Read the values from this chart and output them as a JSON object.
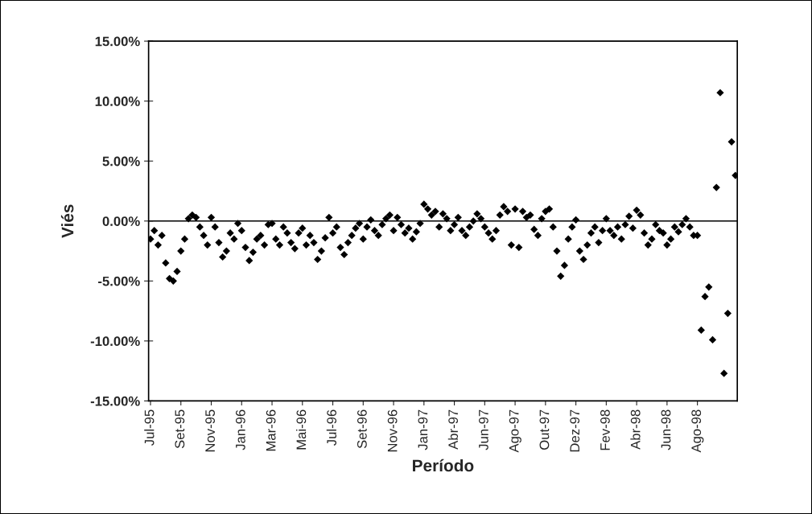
{
  "chart_data": {
    "type": "scatter",
    "xlabel": "Período",
    "ylabel": "Viés",
    "categories": [
      "Jul-95",
      null,
      null,
      null,
      null,
      null,
      null,
      null,
      "Set-95",
      null,
      null,
      null,
      null,
      null,
      null,
      null,
      "Nov-95",
      null,
      null,
      null,
      null,
      null,
      null,
      null,
      "Jan-96",
      null,
      null,
      null,
      null,
      null,
      null,
      null,
      "Mar-96",
      null,
      null,
      null,
      null,
      null,
      null,
      null,
      "Mai-96",
      null,
      null,
      null,
      null,
      null,
      null,
      null,
      "Jul-96",
      null,
      null,
      null,
      null,
      null,
      null,
      null,
      "Set-96",
      null,
      null,
      null,
      null,
      null,
      null,
      null,
      "Nov-96",
      null,
      null,
      null,
      null,
      null,
      null,
      null,
      "Jan-97",
      null,
      null,
      null,
      null,
      null,
      null,
      null,
      "Abr-97",
      null,
      null,
      null,
      null,
      null,
      null,
      null,
      "Jun-97",
      null,
      null,
      null,
      null,
      null,
      null,
      null,
      "Ago-97",
      null,
      null,
      null,
      null,
      null,
      null,
      null,
      "Out-97",
      null,
      null,
      null,
      null,
      null,
      null,
      null,
      "Dez-97",
      null,
      null,
      null,
      null,
      null,
      null,
      null,
      "Fev-98",
      null,
      null,
      null,
      null,
      null,
      null,
      null,
      "Abr-98",
      null,
      null,
      null,
      null,
      null,
      null,
      null,
      "Jun-98",
      null,
      null,
      null,
      null,
      null,
      null,
      null,
      "Ago-98",
      null,
      null,
      null,
      null,
      null,
      null,
      null,
      null,
      null,
      null
    ],
    "series": [
      {
        "color": "#000000",
        "values": [
          -1.5,
          -0.8,
          -2.0,
          -1.2,
          -3.5,
          -4.8,
          -5.0,
          -4.2,
          -2.5,
          -1.5,
          0.2,
          0.5,
          0.3,
          -0.5,
          -1.2,
          -2.0,
          0.3,
          -0.5,
          -1.8,
          -3.0,
          -2.5,
          -1.0,
          -1.5,
          -0.2,
          -0.8,
          -2.2,
          -3.3,
          -2.6,
          -1.5,
          -1.2,
          -2.0,
          -0.3,
          -0.2,
          -1.5,
          -2.0,
          -0.5,
          -1.0,
          -1.8,
          -2.3,
          -1.0,
          -0.6,
          -2.0,
          -1.2,
          -1.8,
          -3.2,
          -2.5,
          -1.4,
          0.3,
          -1.0,
          -0.5,
          -2.2,
          -2.8,
          -1.8,
          -1.2,
          -0.6,
          -0.2,
          -1.5,
          -0.5,
          0.1,
          -0.8,
          -1.2,
          -0.3,
          0.2,
          0.5,
          -0.8,
          0.3,
          -0.3,
          -1.0,
          -0.6,
          -1.5,
          -0.9,
          -0.2,
          1.4,
          1.0,
          0.5,
          0.8,
          -0.5,
          0.6,
          0.2,
          -0.8,
          -0.3,
          0.3,
          -0.8,
          -1.2,
          -0.5,
          0.0,
          0.6,
          0.2,
          -0.5,
          -1.0,
          -1.5,
          -0.8,
          0.5,
          1.2,
          0.8,
          -2.0,
          1.0,
          -2.2,
          0.8,
          0.3,
          0.5,
          -0.7,
          -1.2,
          0.2,
          0.8,
          1.0,
          -0.5,
          -2.5,
          -4.6,
          -3.7,
          -1.5,
          -0.5,
          0.1,
          -2.5,
          -3.2,
          -2.0,
          -1.0,
          -0.5,
          -1.8,
          -0.8,
          0.2,
          -0.8,
          -1.2,
          -0.5,
          -1.5,
          -0.3,
          0.4,
          -0.6,
          0.9,
          0.5,
          -1.0,
          -2.0,
          -1.5,
          -0.3,
          -0.8,
          -1.0,
          -2.0,
          -1.5,
          -0.5,
          -0.9,
          -0.3,
          0.2,
          -0.5,
          -1.2,
          -1.2,
          -9.1,
          -6.3,
          -5.5,
          -9.9,
          2.8,
          10.7,
          -12.7,
          -7.7,
          6.6,
          3.8
        ]
      }
    ],
    "ylim": [
      -15,
      15
    ],
    "yticks": [
      {
        "value": -15,
        "label": "-15.00%"
      },
      {
        "value": -10,
        "label": "-10.00%"
      },
      {
        "value": -5,
        "label": "-5.00%"
      },
      {
        "value": 0,
        "label": "0.00%"
      },
      {
        "value": 5,
        "label": "5.00%"
      },
      {
        "value": 10,
        "label": "10.00%"
      },
      {
        "value": 15,
        "label": "15.00%"
      }
    ],
    "ref_lines": [
      {
        "axis": "y",
        "value": 0,
        "color": "#000000"
      }
    ],
    "marker": "diamond",
    "grid": false,
    "legend": false
  }
}
